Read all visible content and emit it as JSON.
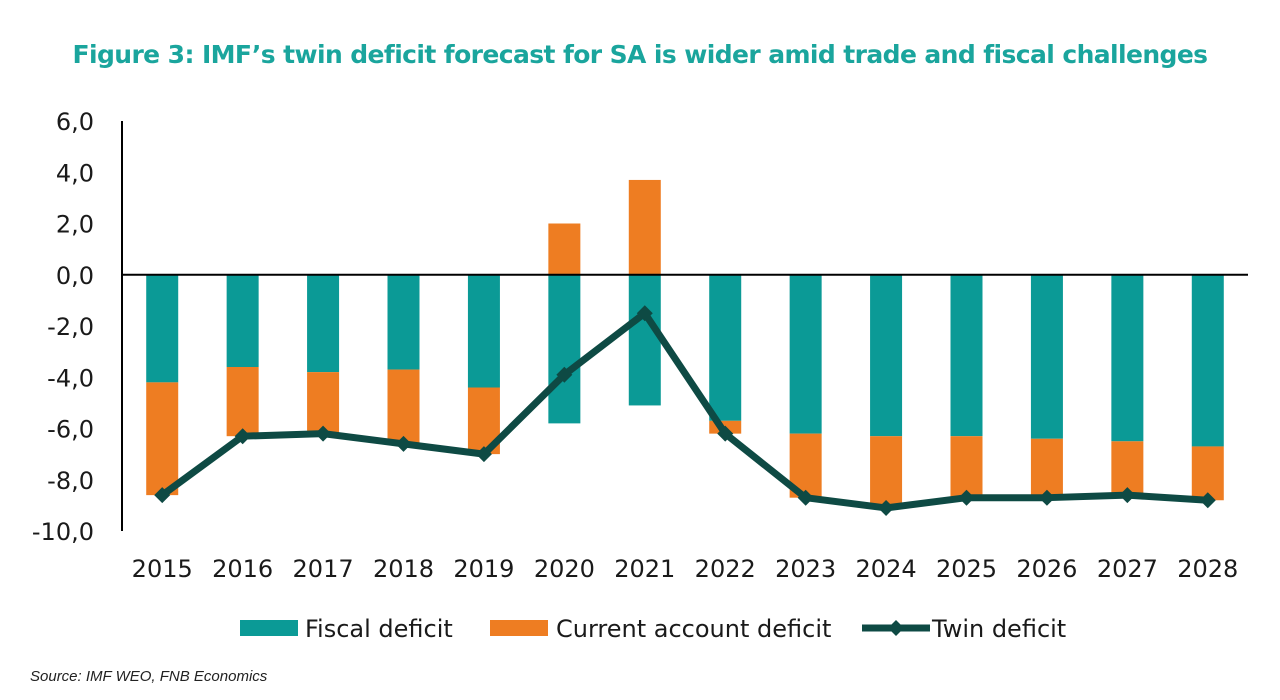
{
  "chart_data": {
    "type": "bar",
    "title": "Figure 3: IMF’s twin deficit forecast for SA is wider amid trade and fiscal challenges",
    "categories": [
      "2015",
      "2016",
      "2017",
      "2018",
      "2019",
      "2020",
      "2021",
      "2022",
      "2023",
      "2024",
      "2025",
      "2026",
      "2027",
      "2028"
    ],
    "ylim": [
      -10,
      6
    ],
    "yticks": [
      "6,0",
      "4,0",
      "2,0",
      "0,0",
      "-2,0",
      "-4,0",
      "-6,0",
      "-8,0",
      "-10,0"
    ],
    "ytick_values": [
      6,
      4,
      2,
      0,
      -2,
      -4,
      -6,
      -8,
      -10
    ],
    "grid": false,
    "legend_position": "bottom",
    "series": [
      {
        "name": "Fiscal deficit",
        "kind": "stacked-bar",
        "color": "#0b9a96",
        "values": [
          -4.2,
          -3.6,
          -3.8,
          -3.7,
          -4.4,
          -5.8,
          -5.1,
          -5.7,
          -6.2,
          -6.3,
          -6.3,
          -6.4,
          -6.5,
          -6.7
        ]
      },
      {
        "name": "Current account deficit",
        "kind": "stacked-bar",
        "color": "#ee7d22",
        "values": [
          -4.4,
          -2.7,
          -2.4,
          -2.9,
          -2.6,
          2.0,
          3.7,
          -0.5,
          -2.5,
          -2.8,
          -2.4,
          -2.3,
          -2.1,
          -2.1
        ]
      },
      {
        "name": "Twin deficit",
        "kind": "line",
        "color": "#0e4a44",
        "marker": "diamond",
        "values": [
          -8.6,
          -6.3,
          -6.2,
          -6.6,
          -7.0,
          -3.9,
          -1.5,
          -6.2,
          -8.7,
          -9.1,
          -8.7,
          -8.7,
          -8.6,
          -8.8
        ]
      }
    ]
  },
  "source": "Source: IMF WEO, FNB Economics"
}
